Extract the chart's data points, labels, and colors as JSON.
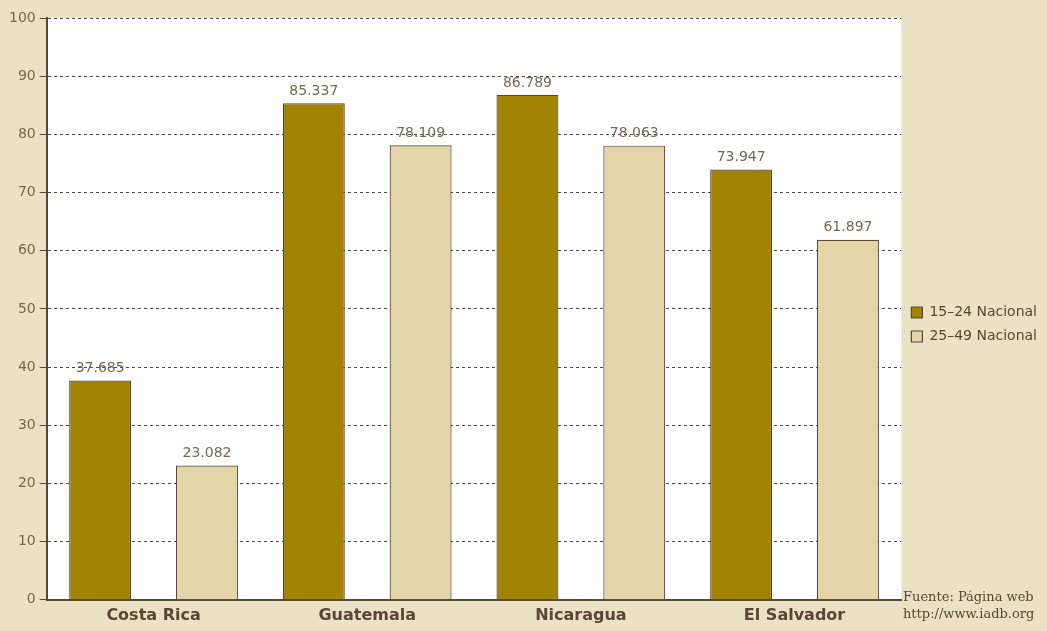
{
  "chart_data": {
    "type": "bar",
    "categories": [
      "Costa Rica",
      "Guatemala",
      "Nicaragua",
      "El Salvador"
    ],
    "series": [
      {
        "name": "15–24 Nacional",
        "color": "#a08400",
        "values": [
          37.685,
          85.337,
          86.789,
          73.947
        ]
      },
      {
        "name": "25–49 Nacional",
        "color": "#e3d5a8",
        "values": [
          23.082,
          78.109,
          78.063,
          61.897
        ]
      }
    ],
    "ylim": [
      0,
      100
    ],
    "yticks": [
      0,
      10,
      20,
      30,
      40,
      50,
      60,
      70,
      80,
      90,
      100
    ],
    "grid": "y",
    "legend": "right",
    "data_labels": true,
    "annotations": [
      "Fuente: Página web http://www.iadb.org"
    ]
  }
}
